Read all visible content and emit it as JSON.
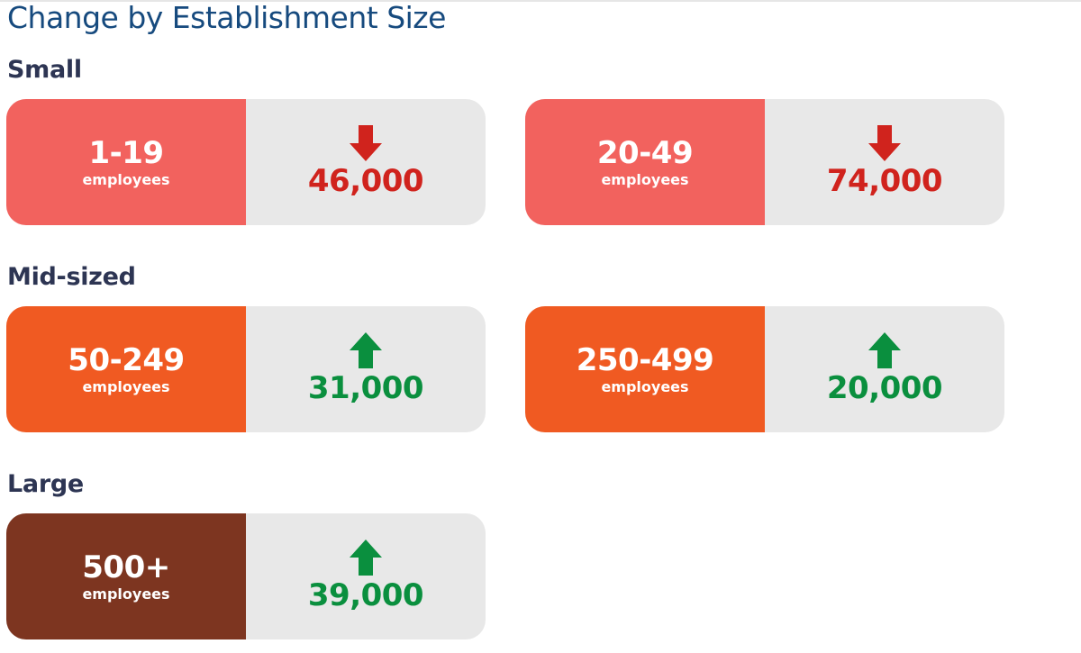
{
  "header": {
    "title": "Change by Establishment Size"
  },
  "colors": {
    "small": "#f2625e",
    "mid": "#f05a22",
    "large": "#7d3520",
    "panel": "#e8e8e8",
    "decrease": "#d0231d",
    "increase": "#0a8f3e"
  },
  "sections": [
    {
      "heading": "Small",
      "cards": [
        {
          "range": "1-19",
          "unit": "employees",
          "value": "46,000",
          "direction": "down",
          "arrow_icon": "arrow-down-icon"
        },
        {
          "range": "20-49",
          "unit": "employees",
          "value": "74,000",
          "direction": "down",
          "arrow_icon": "arrow-down-icon"
        }
      ]
    },
    {
      "heading": "Mid-sized",
      "cards": [
        {
          "range": "50-249",
          "unit": "employees",
          "value": "31,000",
          "direction": "up",
          "arrow_icon": "arrow-up-icon"
        },
        {
          "range": "250-499",
          "unit": "employees",
          "value": "20,000",
          "direction": "up",
          "arrow_icon": "arrow-up-icon"
        }
      ]
    },
    {
      "heading": "Large",
      "cards": [
        {
          "range": "500+",
          "unit": "employees",
          "value": "39,000",
          "direction": "up",
          "arrow_icon": "arrow-up-icon"
        }
      ]
    }
  ]
}
